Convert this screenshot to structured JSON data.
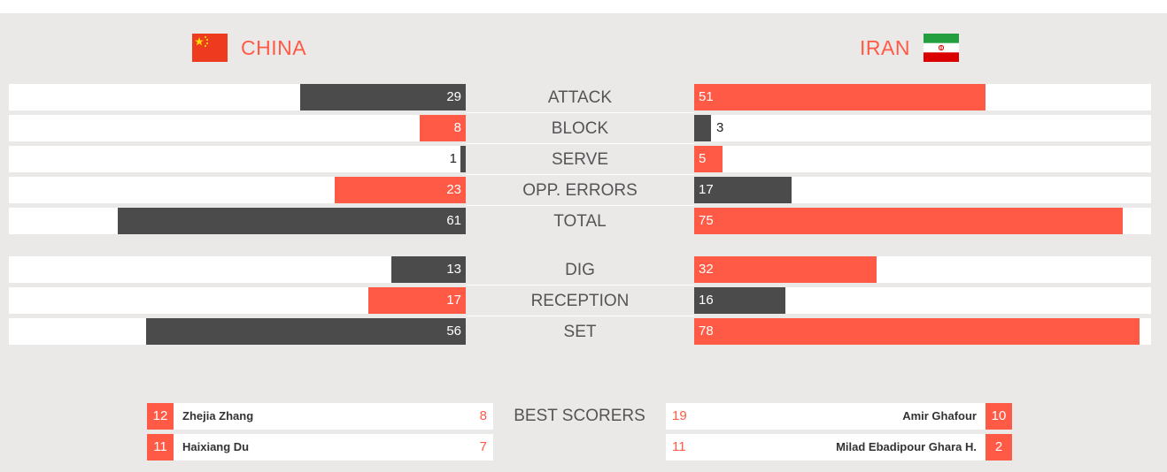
{
  "teams": {
    "left": {
      "name": "CHINA",
      "flag_icon": "china-flag-icon"
    },
    "right": {
      "name": "IRAN",
      "flag_icon": "iran-flag-icon"
    }
  },
  "colors": {
    "accent": "#ff5a45",
    "dark_bar": "#4b4b4b",
    "panel_bg": "#ebe8e8",
    "track_bg": "#ffffff"
  },
  "stats_max": 80,
  "stats": [
    {
      "key": "attack",
      "label": "ATTACK",
      "left": 29,
      "right": 51,
      "left_color": "dark",
      "right_color": "red"
    },
    {
      "key": "block",
      "label": "BLOCK",
      "left": 8,
      "right": 3,
      "left_color": "red",
      "right_color": "dark"
    },
    {
      "key": "serve",
      "label": "SERVE",
      "left": 1,
      "right": 5,
      "left_color": "dark",
      "right_color": "red"
    },
    {
      "key": "opp-errors",
      "label": "OPP. ERRORS",
      "left": 23,
      "right": 17,
      "left_color": "red",
      "right_color": "dark"
    },
    {
      "key": "total",
      "label": "TOTAL",
      "left": 61,
      "right": 75,
      "left_color": "dark",
      "right_color": "red"
    },
    {
      "key": "dig",
      "label": "DIG",
      "left": 13,
      "right": 32,
      "left_color": "dark",
      "right_color": "red"
    },
    {
      "key": "reception",
      "label": "RECEPTION",
      "left": 17,
      "right": 16,
      "left_color": "red",
      "right_color": "dark"
    },
    {
      "key": "set",
      "label": "SET",
      "left": 56,
      "right": 78,
      "left_color": "dark",
      "right_color": "red"
    }
  ],
  "best_scorers": {
    "label": "BEST SCORERS",
    "left": [
      {
        "number": "12",
        "name": "Zhejia Zhang",
        "points": "8"
      },
      {
        "number": "11",
        "name": "Haixiang Du",
        "points": "7"
      }
    ],
    "right": [
      {
        "number": "10",
        "name": "Amir Ghafour",
        "points": "19"
      },
      {
        "number": "2",
        "name": "Milad Ebadipour Ghara H.",
        "points": "11"
      }
    ]
  }
}
